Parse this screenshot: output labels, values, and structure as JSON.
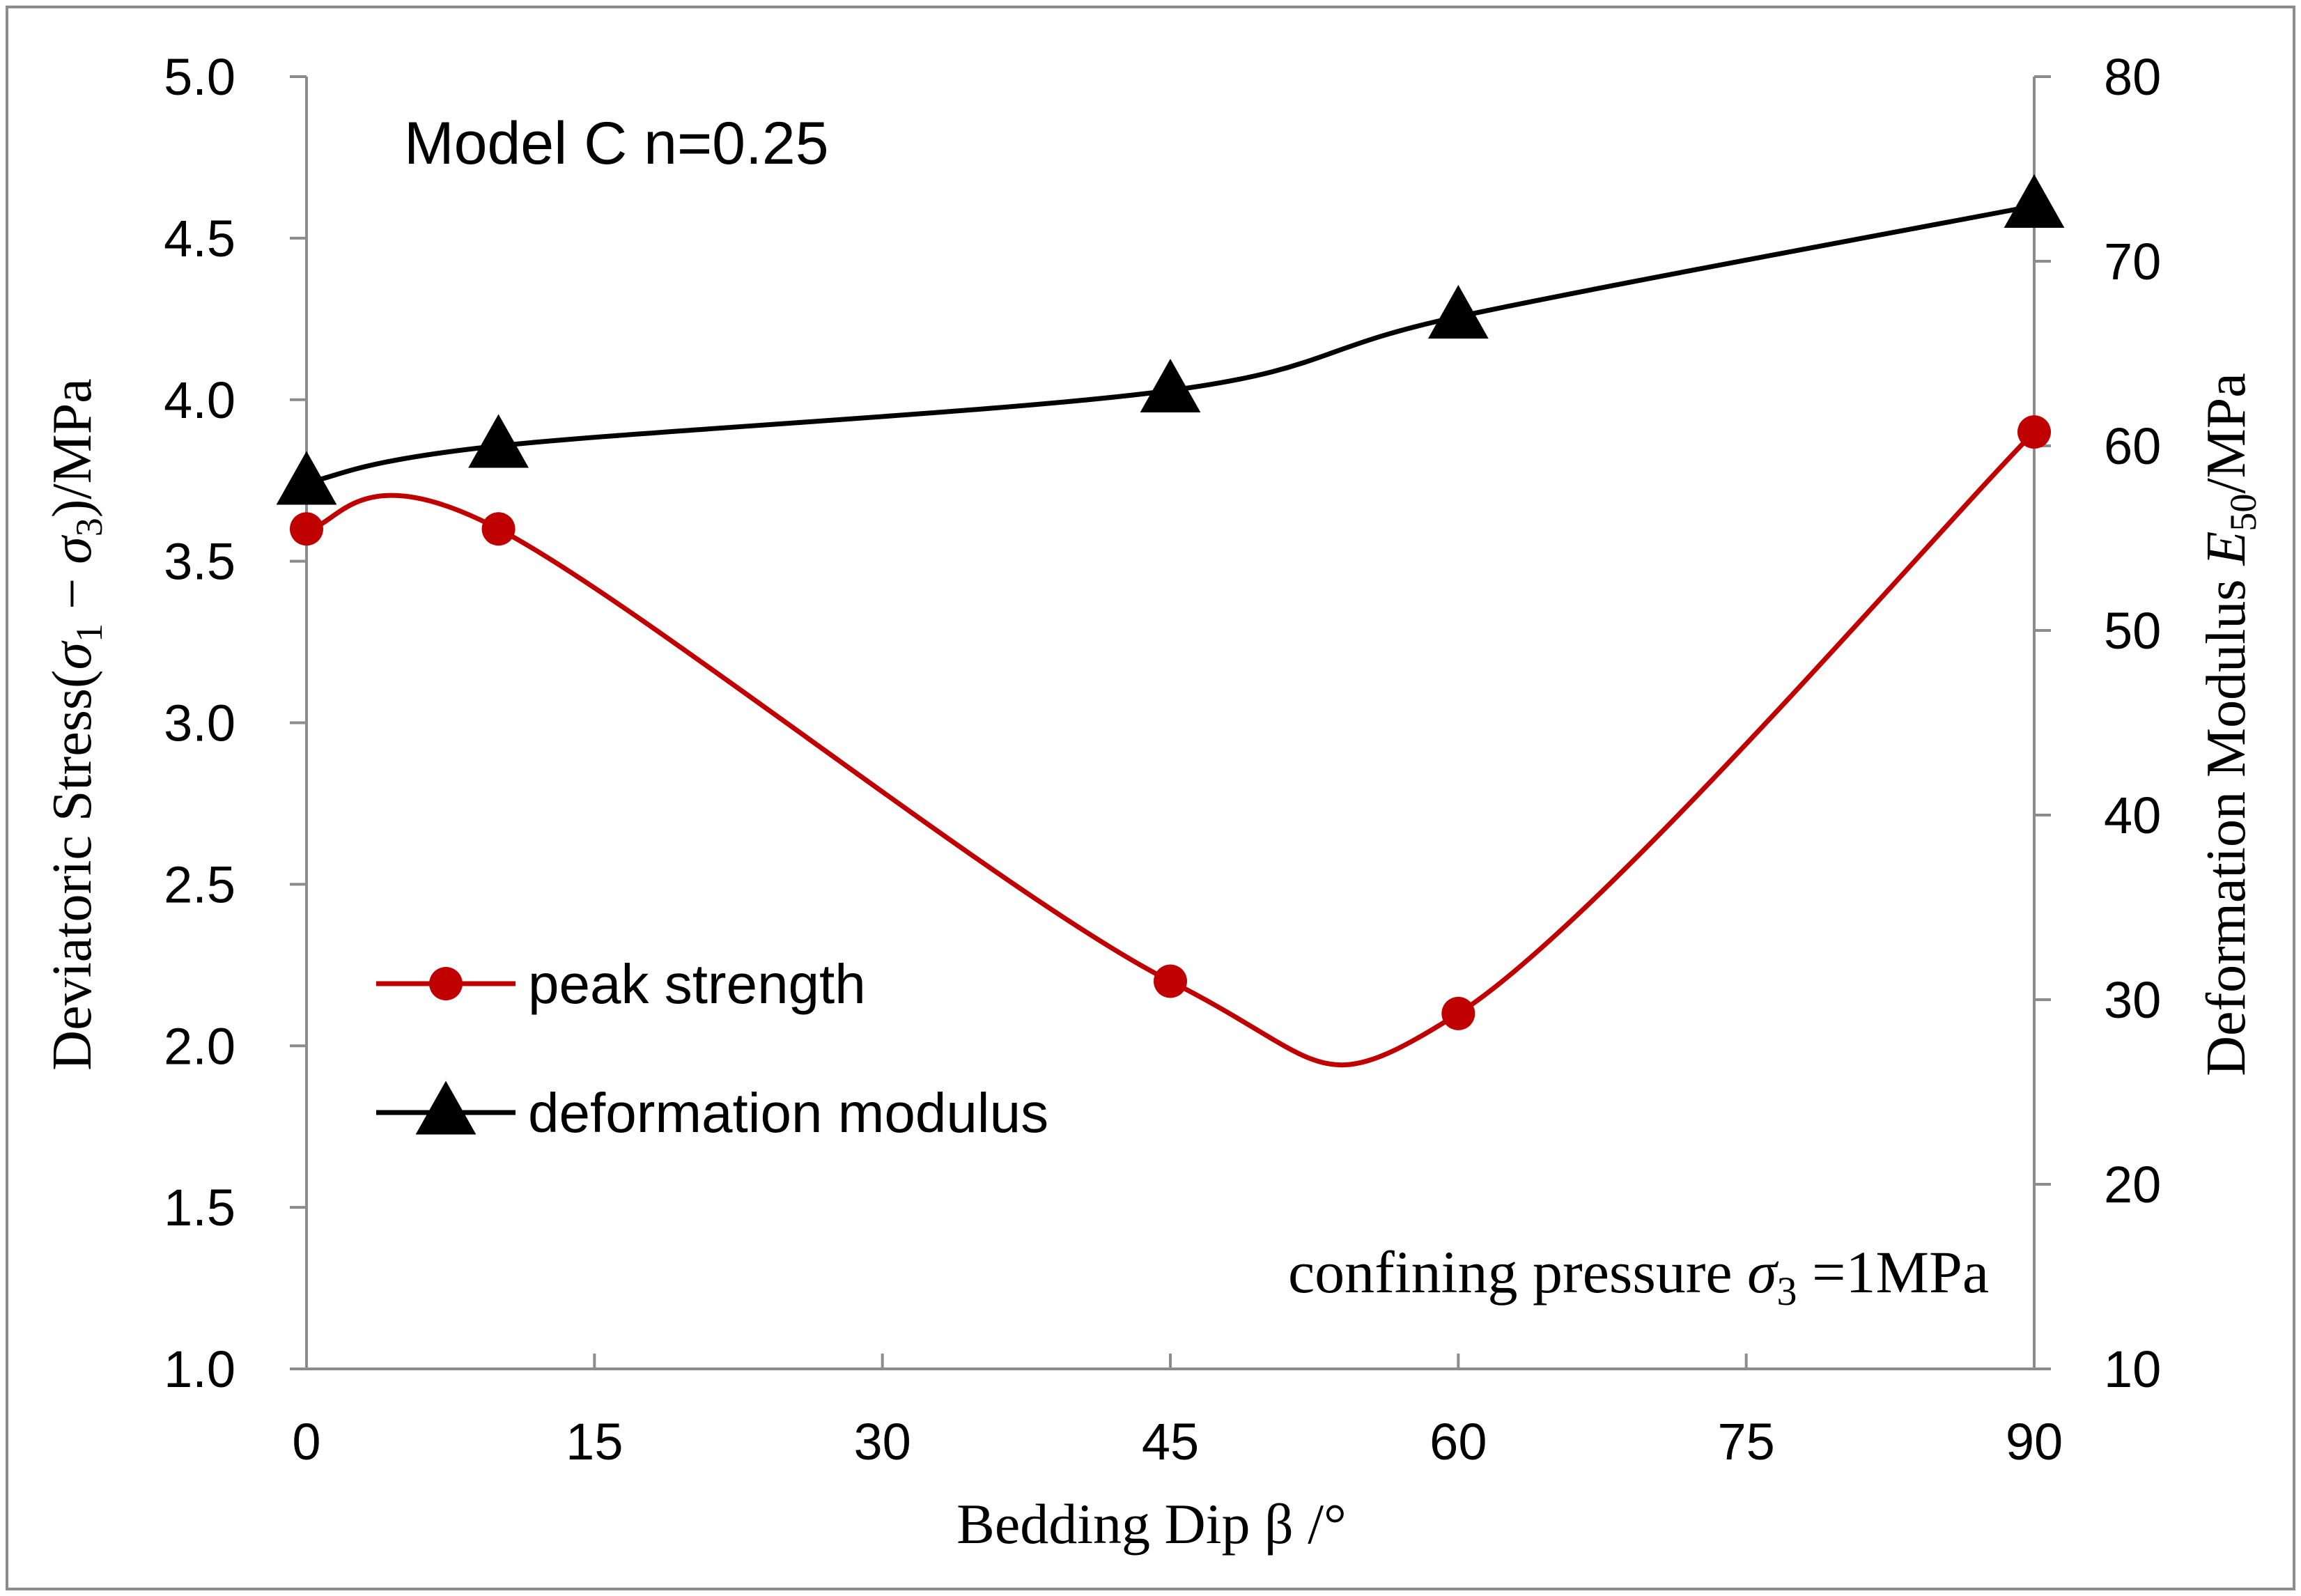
{
  "chart_data": {
    "type": "line",
    "title": "",
    "xlabel": "Bedding Dip β /°",
    "ylabel_left": {
      "prefix": "Deviatoric Stress(",
      "sigma": "σ",
      "sub1": "1",
      "minus": " − ",
      "sub3": "3",
      "suffix": ")/MPa"
    },
    "ylabel_right": {
      "prefix": "Deformation Modulus ",
      "E": "E",
      "sub": "50",
      "suffix": "/MPa"
    },
    "xlim": [
      0,
      90
    ],
    "ylim_left": [
      1.0,
      5.0
    ],
    "ylim_right": [
      10,
      80
    ],
    "x_ticks": [
      0,
      15,
      30,
      45,
      60,
      75,
      90
    ],
    "y_ticks_left": [
      "1.0",
      "1.5",
      "2.0",
      "2.5",
      "3.0",
      "3.5",
      "4.0",
      "4.5",
      "5.0"
    ],
    "y_ticks_right": [
      "10",
      "20",
      "30",
      "40",
      "50",
      "60",
      "70",
      "80"
    ],
    "grid": false,
    "legend_position": "middle-left",
    "series": [
      {
        "name": "peak strength",
        "axis": "left",
        "marker": "circle",
        "color": "#c00000",
        "x": [
          0,
          10,
          45,
          60,
          90
        ],
        "values": [
          3.6,
          3.6,
          2.2,
          2.1,
          3.9
        ]
      },
      {
        "name": "deformation modulus",
        "axis": "right",
        "marker": "triangle",
        "color": "#000000",
        "x": [
          0,
          10,
          45,
          60,
          90
        ],
        "values": [
          58,
          60,
          63,
          67,
          73
        ]
      }
    ],
    "annotations": {
      "model": "Model C   n=0.25",
      "pressure_prefix": "confining pressure  ",
      "pressure_sigma": "σ",
      "pressure_sub": "3",
      "pressure_suffix": " =1MPa"
    }
  }
}
